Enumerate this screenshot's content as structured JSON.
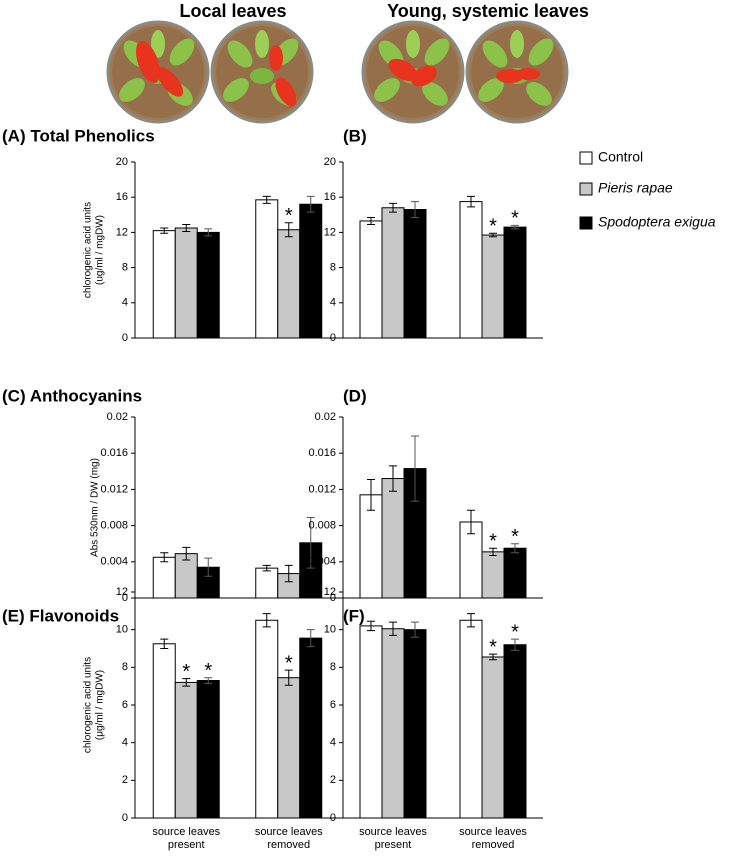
{
  "header": {
    "left": "Local leaves",
    "right": "Young, systemic leaves"
  },
  "legend": [
    {
      "name": "Control",
      "color": "#ffffff",
      "style": "normal"
    },
    {
      "name": "Pieris rapae",
      "color": "#c8c8c8",
      "style": "italic"
    },
    {
      "name": "Spodoptera exigua",
      "color": "#000000",
      "style": "italic"
    }
  ],
  "chart_data": [
    {
      "type": "bar",
      "title": "(A) Total Phenolics",
      "ylabel": [
        "chlorogenic acid units",
        "(ug/ml / mgDW)"
      ],
      "categories": [
        null,
        null
      ],
      "ylim": [
        0,
        20
      ],
      "yticks": [
        0,
        4,
        8,
        12,
        16,
        20
      ],
      "series": [
        {
          "values": [
            12.2,
            15.7
          ],
          "errors": [
            0.3,
            0.4
          ]
        },
        {
          "values": [
            12.5,
            12.3
          ],
          "errors": [
            0.4,
            0.8
          ]
        },
        {
          "values": [
            12.0,
            15.2
          ],
          "errors": [
            0.4,
            0.9
          ]
        }
      ],
      "annotations": [
        {
          "series": 1,
          "index": 1,
          "text": "*"
        }
      ]
    },
    {
      "type": "bar",
      "title": "(B)",
      "ylabel": null,
      "categories": [
        null,
        null
      ],
      "ylim": [
        0,
        20
      ],
      "yticks": [
        0,
        4,
        8,
        12,
        16,
        20
      ],
      "series": [
        {
          "values": [
            13.3,
            15.5
          ],
          "errors": [
            0.4,
            0.6
          ]
        },
        {
          "values": [
            14.8,
            11.7
          ],
          "errors": [
            0.5,
            0.2
          ]
        },
        {
          "values": [
            14.6,
            12.6
          ],
          "errors": [
            0.9,
            0.2
          ]
        }
      ],
      "annotations": [
        {
          "series": 1,
          "index": 1,
          "text": "*"
        },
        {
          "series": 2,
          "index": 1,
          "text": "*"
        }
      ]
    },
    {
      "type": "bar",
      "title": "(C) Anthocyanins",
      "ylabel": [
        "Abs 530nm / DW (mg)"
      ],
      "categories": [
        null,
        null
      ],
      "ylim": [
        0,
        0.02
      ],
      "yticks": [
        0,
        0.004,
        0.008,
        0.012,
        0.016,
        0.02
      ],
      "series": [
        {
          "values": [
            0.0045,
            0.0033
          ],
          "errors": [
            0.0005,
            0.0003
          ]
        },
        {
          "values": [
            0.0049,
            0.0027
          ],
          "errors": [
            0.0007,
            0.0009
          ]
        },
        {
          "values": [
            0.0034,
            0.0061
          ],
          "errors": [
            0.001,
            0.0028
          ]
        }
      ],
      "annotations": []
    },
    {
      "type": "bar",
      "title": "(D)",
      "ylabel": null,
      "categories": [
        null,
        null
      ],
      "ylim": [
        0,
        0.02
      ],
      "yticks": [
        0,
        0.004,
        0.008,
        0.012,
        0.016,
        0.02
      ],
      "series": [
        {
          "values": [
            0.0114,
            0.0084
          ],
          "errors": [
            0.0017,
            0.0013
          ]
        },
        {
          "values": [
            0.0132,
            0.0051
          ],
          "errors": [
            0.0014,
            0.0004
          ]
        },
        {
          "values": [
            0.0143,
            0.0055
          ],
          "errors": [
            0.0036,
            0.0005
          ]
        }
      ],
      "annotations": [
        {
          "series": 1,
          "index": 1,
          "text": "*"
        },
        {
          "series": 2,
          "index": 1,
          "text": "*"
        }
      ]
    },
    {
      "type": "bar",
      "title": "(E) Flavonoids",
      "ylabel": [
        "chlorogenic acid units",
        "(μg/ml / mgDW)"
      ],
      "categories": [
        [
          "source leaves",
          "present"
        ],
        [
          "source leaves",
          "removed"
        ]
      ],
      "ylim": [
        0,
        12
      ],
      "yticks": [
        0,
        2,
        4,
        6,
        8,
        10,
        12
      ],
      "series": [
        {
          "values": [
            9.25,
            10.5
          ],
          "errors": [
            0.25,
            0.35
          ]
        },
        {
          "values": [
            7.2,
            7.45
          ],
          "errors": [
            0.2,
            0.4
          ]
        },
        {
          "values": [
            7.3,
            9.55
          ],
          "errors": [
            0.15,
            0.45
          ]
        }
      ],
      "annotations": [
        {
          "series": 1,
          "index": 0,
          "text": "*"
        },
        {
          "series": 2,
          "index": 0,
          "text": "*"
        },
        {
          "series": 1,
          "index": 1,
          "text": "*"
        }
      ]
    },
    {
      "type": "bar",
      "title": "(F)",
      "ylabel": null,
      "categories": [
        [
          "source leaves",
          "present"
        ],
        [
          "source leaves",
          "removed"
        ]
      ],
      "ylim": [
        0,
        12
      ],
      "yticks": [
        0,
        2,
        4,
        6,
        8,
        10,
        12
      ],
      "series": [
        {
          "values": [
            10.2,
            10.5
          ],
          "errors": [
            0.25,
            0.35
          ]
        },
        {
          "values": [
            10.05,
            8.55
          ],
          "errors": [
            0.35,
            0.15
          ]
        },
        {
          "values": [
            10.0,
            9.2
          ],
          "errors": [
            0.4,
            0.3
          ]
        }
      ],
      "annotations": [
        {
          "series": 1,
          "index": 1,
          "text": "*"
        },
        {
          "series": 2,
          "index": 1,
          "text": "*"
        }
      ]
    }
  ]
}
